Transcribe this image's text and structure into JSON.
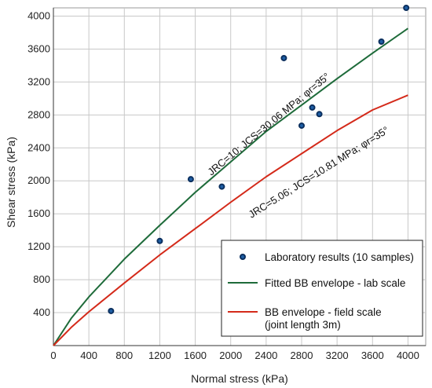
{
  "chart_data": {
    "type": "scatter",
    "xlabel": "Normal stress (kPa)",
    "ylabel": "Shear stress (kPa)",
    "xlim": [
      0,
      4200
    ],
    "ylim": [
      0,
      4100
    ],
    "xticks": [
      0,
      400,
      800,
      1200,
      1600,
      2000,
      2400,
      2800,
      3200,
      3600,
      4000
    ],
    "yticks": [
      400,
      800,
      1200,
      1600,
      2000,
      2400,
      2800,
      3200,
      3600,
      4000
    ],
    "grid": true,
    "legend_position": "bottom-right",
    "colors": {
      "points_fill": "#1f5fa6",
      "points_edge": "#0b2f5e",
      "lab_curve": "#1e6b3a",
      "field_curve": "#d42a1a"
    },
    "series": [
      {
        "name": "Laboratory results (10 samples)",
        "kind": "points",
        "x": [
          650,
          1200,
          1550,
          1900,
          2600,
          2800,
          2920,
          3000,
          3700,
          3980
        ],
        "y": [
          420,
          1270,
          2020,
          1930,
          3490,
          2670,
          2890,
          2810,
          3690,
          4100
        ]
      },
      {
        "name": "Fitted BB envelope - lab scale",
        "kind": "line",
        "x": [
          0,
          200,
          400,
          800,
          1200,
          1600,
          2000,
          2400,
          2800,
          3200,
          3600,
          4000
        ],
        "y": [
          0,
          330,
          590,
          1050,
          1460,
          1860,
          2230,
          2600,
          2920,
          3240,
          3550,
          3850
        ]
      },
      {
        "name": "BB envelope - field scale (joint length 3m)",
        "kind": "line",
        "x": [
          0,
          200,
          400,
          800,
          1200,
          1600,
          2000,
          2400,
          2800,
          3200,
          3600,
          4000
        ],
        "y": [
          0,
          220,
          410,
          760,
          1100,
          1420,
          1740,
          2050,
          2330,
          2610,
          2860,
          3040
        ]
      }
    ],
    "annotations": [
      {
        "text": "JRC=10; JCS=30.06 MPa; φr=35°",
        "series": 1
      },
      {
        "text": "JRC=5.06; JCS=10.81 MPa; φr=35°",
        "series": 2
      }
    ],
    "legend": [
      "Laboratory results (10 samples)",
      "Fitted BB envelope - lab scale",
      "BB envelope - field scale",
      "(joint length 3m)"
    ]
  }
}
